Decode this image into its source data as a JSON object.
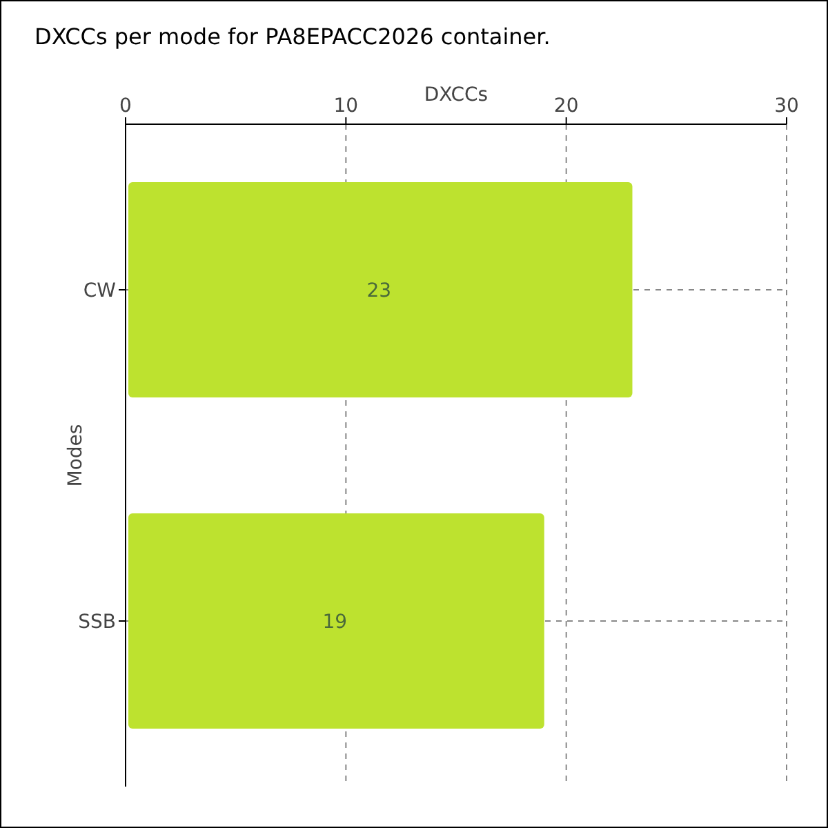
{
  "chart_data": {
    "type": "bar",
    "orientation": "horizontal",
    "title": "DXCCs per mode for PA8EPACC2026 container.",
    "xlabel": "DXCCs",
    "ylabel": "Modes",
    "categories": [
      "CW",
      "SSB"
    ],
    "values": [
      23,
      19
    ],
    "color": "#bde22f",
    "xlim": [
      0,
      30
    ],
    "xticks": [
      0,
      10,
      20,
      30
    ],
    "grid": true,
    "data_labels": true
  }
}
